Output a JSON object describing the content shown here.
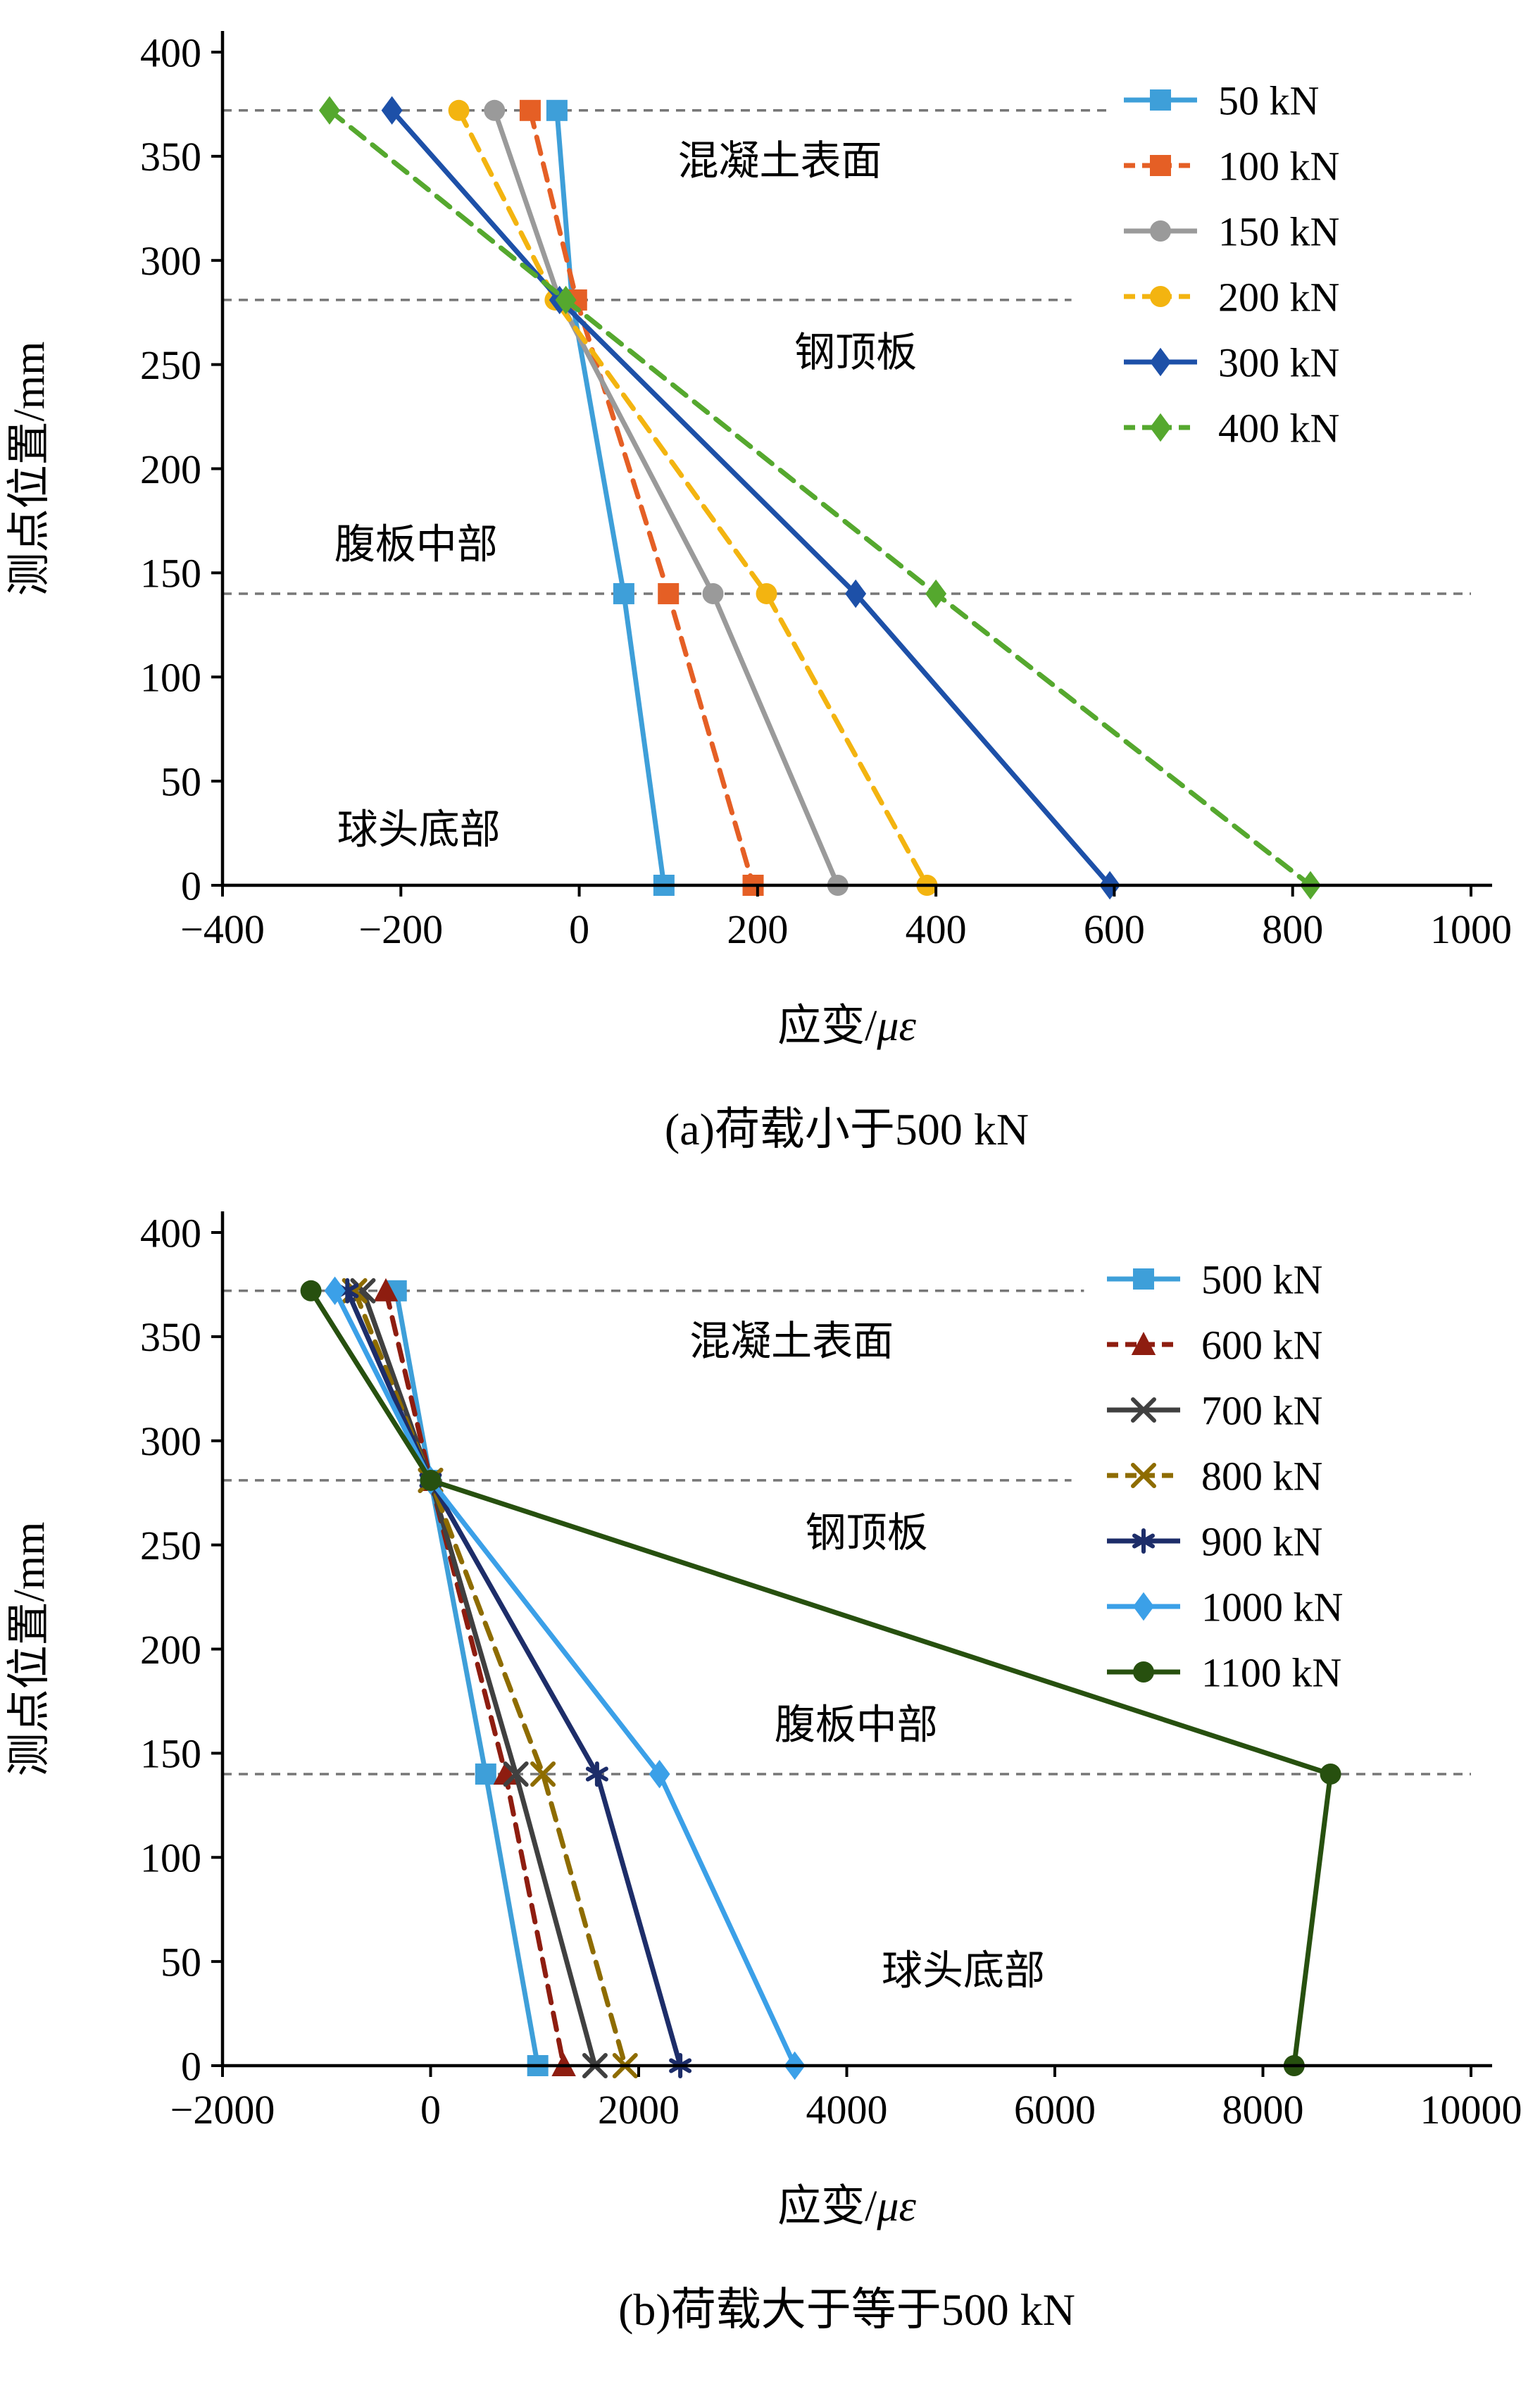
{
  "figure": {
    "background": "#ffffff",
    "axis_color": "#000000",
    "ref_line_color": "#777777"
  },
  "chart_data": [
    {
      "id": "a",
      "type": "line",
      "caption": "(a)荷载小于500 kN",
      "xlabel": {
        "text": "应变/",
        "italic": "με"
      },
      "ylabel": "测点位置/mm",
      "xlim": [
        -400,
        1000
      ],
      "ylim": [
        0,
        400
      ],
      "xticks": [
        -400,
        -200,
        0,
        200,
        400,
        600,
        800,
        1000
      ],
      "xtick_labels": [
        "−400",
        "−200",
        "0",
        "200",
        "400",
        "600",
        "800",
        "1000"
      ],
      "yticks": [
        0,
        50,
        100,
        150,
        200,
        250,
        300,
        350,
        400
      ],
      "ytick_labels": [
        "0",
        "50",
        "100",
        "150",
        "200",
        "250",
        "300",
        "350",
        "400"
      ],
      "y_points": [
        372,
        281,
        140,
        0
      ],
      "ref_lines": [
        {
          "y": 372,
          "extent": 0.71
        },
        {
          "y": 281,
          "extent": 0.68
        },
        {
          "y": 140,
          "extent": 1.0
        }
      ],
      "annotations": [
        {
          "text": "混凝土表面",
          "x": 225,
          "y": 348
        },
        {
          "text": "钢顶板",
          "x": 310,
          "y": 256
        },
        {
          "text": "腹板中部",
          "x": -183,
          "y": 164
        },
        {
          "text": "球头底部",
          "x": -180,
          "y": 27
        }
      ],
      "series": [
        {
          "name": "50 kN",
          "color": "#3E9FD9",
          "style": "solid",
          "marker": "square",
          "values": [
            -25,
            -8,
            50,
            95
          ]
        },
        {
          "name": "100 kN",
          "color": "#E55F25",
          "style": "dashed",
          "marker": "square",
          "values": [
            -55,
            -3,
            100,
            195
          ]
        },
        {
          "name": "150 kN",
          "color": "#9A9A9A",
          "style": "solid",
          "marker": "circle",
          "values": [
            -95,
            -22,
            150,
            290
          ]
        },
        {
          "name": "200 kN",
          "color": "#F3B410",
          "style": "dashed",
          "marker": "circle",
          "values": [
            -135,
            -27,
            210,
            390
          ]
        },
        {
          "name": "300 kN",
          "color": "#1D50A8",
          "style": "solid",
          "marker": "diamond",
          "values": [
            -210,
            -22,
            310,
            595
          ]
        },
        {
          "name": "400 kN",
          "color": "#55A82E",
          "style": "dashed",
          "marker": "diamond",
          "values": [
            -280,
            -15,
            400,
            820
          ]
        }
      ],
      "legend": {
        "position": "top-right",
        "labels": [
          "50 kN",
          "100 kN",
          "150 kN",
          "200 kN",
          "300 kN",
          "400 kN"
        ]
      }
    },
    {
      "id": "b",
      "type": "line",
      "caption": "(b)荷载大于等于500 kN",
      "xlabel": {
        "text": "应变/",
        "italic": "με"
      },
      "ylabel": "测点位置/mm",
      "xlim": [
        -2000,
        10000
      ],
      "ylim": [
        0,
        400
      ],
      "xticks": [
        -2000,
        0,
        2000,
        4000,
        6000,
        8000,
        10000
      ],
      "xtick_labels": [
        "−2000",
        "0",
        "2000",
        "4000",
        "6000",
        "8000",
        "10000"
      ],
      "yticks": [
        0,
        50,
        100,
        150,
        200,
        250,
        300,
        350,
        400
      ],
      "ytick_labels": [
        "0",
        "50",
        "100",
        "150",
        "200",
        "250",
        "300",
        "350",
        "400"
      ],
      "y_points": [
        372,
        281,
        140,
        0
      ],
      "ref_lines": [
        {
          "y": 372,
          "extent": 0.69
        },
        {
          "y": 281,
          "extent": 0.68
        },
        {
          "y": 140,
          "extent": 1.0
        }
      ],
      "annotations": [
        {
          "text": "混凝土表面",
          "x": 3470,
          "y": 348
        },
        {
          "text": "钢顶板",
          "x": 4190,
          "y": 256
        },
        {
          "text": "腹板中部",
          "x": 4090,
          "y": 164
        },
        {
          "text": "球头底部",
          "x": 5120,
          "y": 46
        }
      ],
      "series": [
        {
          "name": "500 kN",
          "color": "#3E9FD9",
          "style": "solid",
          "marker": "square",
          "values": [
            -330,
            0,
            530,
            1030
          ]
        },
        {
          "name": "600 kN",
          "color": "#8E1D10",
          "style": "dashed",
          "marker": "triangle",
          "values": [
            -430,
            0,
            720,
            1280
          ]
        },
        {
          "name": "700 kN",
          "color": "#404040",
          "style": "solid",
          "marker": "x",
          "values": [
            -650,
            0,
            820,
            1580
          ]
        },
        {
          "name": "800 kN",
          "color": "#8E6C00",
          "style": "dashed",
          "marker": "x",
          "values": [
            -730,
            0,
            1080,
            1870
          ]
        },
        {
          "name": "900 kN",
          "color": "#1D2D69",
          "style": "solid",
          "marker": "asterisk",
          "values": [
            -800,
            0,
            1600,
            2400
          ]
        },
        {
          "name": "1000 kN",
          "color": "#3BA0E8",
          "style": "solid",
          "marker": "diamond",
          "values": [
            -920,
            0,
            2200,
            3500
          ]
        },
        {
          "name": "1100 kN",
          "color": "#27500F",
          "style": "solid",
          "marker": "circle",
          "values": [
            -1150,
            0,
            8650,
            8300
          ]
        }
      ],
      "legend": {
        "position": "top-right",
        "labels": [
          "500 kN",
          "600 kN",
          "700 kN",
          "800 kN",
          "900 kN",
          "1000 kN",
          "1100 kN"
        ]
      }
    }
  ]
}
